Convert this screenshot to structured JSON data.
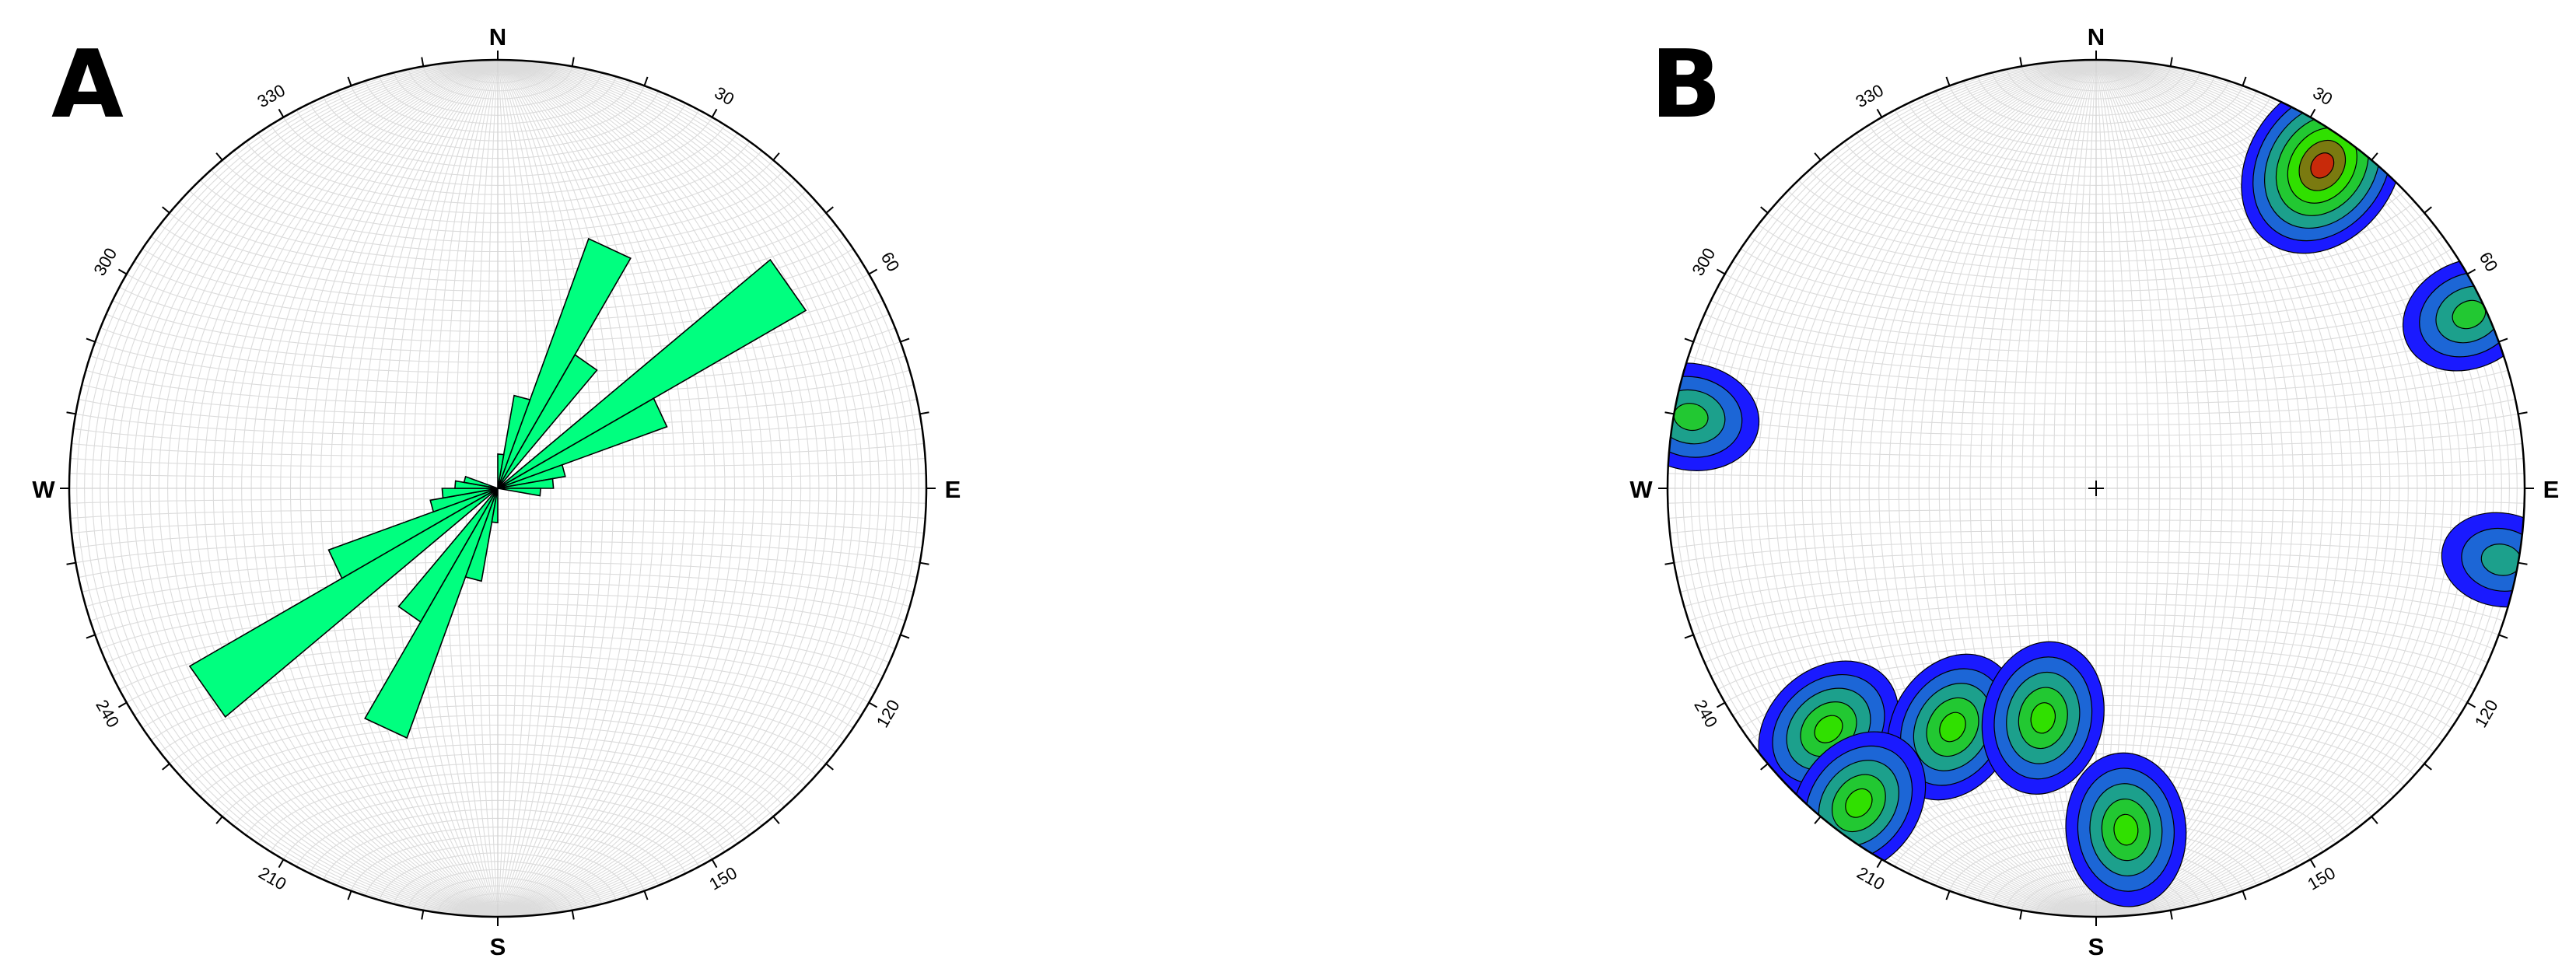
{
  "panels": [
    {
      "letter": "A",
      "cardinals": {
        "n": "N",
        "e": "E",
        "s": "S",
        "w": "W"
      },
      "degree_ticks": [
        "30",
        "60",
        "120",
        "150",
        "210",
        "240",
        "300",
        "330"
      ],
      "rose_color": "#00ff7f"
    },
    {
      "letter": "B",
      "cardinals": {
        "n": "N",
        "e": "E",
        "s": "S",
        "w": "W"
      },
      "degree_ticks": [
        "30",
        "60",
        "120",
        "150",
        "210",
        "240",
        "300",
        "330"
      ],
      "contour_colors": [
        "#1a1aff",
        "#1c66d6",
        "#1ca08c",
        "#22c832",
        "#30e000",
        "#7a7a10",
        "#c82a0a"
      ]
    }
  ],
  "chart_data": [
    {
      "type": "rose",
      "plot": "equal-area stereonet with rose diagram",
      "bin_width_deg": 10,
      "petals": [
        {
          "azimuth_center": 25,
          "length": 0.62
        },
        {
          "azimuth_center": 35,
          "length": 0.36
        },
        {
          "azimuth_center": 55,
          "length": 0.83
        },
        {
          "azimuth_center": 65,
          "length": 0.42
        },
        {
          "azimuth_center": 15,
          "length": 0.22
        },
        {
          "azimuth_center": 75,
          "length": 0.16
        },
        {
          "azimuth_center": 205,
          "length": 0.62
        },
        {
          "azimuth_center": 215,
          "length": 0.36
        },
        {
          "azimuth_center": 235,
          "length": 0.83
        },
        {
          "azimuth_center": 245,
          "length": 0.42
        },
        {
          "azimuth_center": 195,
          "length": 0.22
        },
        {
          "azimuth_center": 255,
          "length": 0.16
        },
        {
          "azimuth_center": 265,
          "length": 0.13
        },
        {
          "azimuth_center": 275,
          "length": 0.1
        },
        {
          "azimuth_center": 285,
          "length": 0.08
        },
        {
          "azimuth_center": 185,
          "length": 0.08
        },
        {
          "azimuth_center": 85,
          "length": 0.13
        },
        {
          "azimuth_center": 95,
          "length": 0.1
        },
        {
          "azimuth_center": 5,
          "length": 0.08
        }
      ]
    },
    {
      "type": "heatmap",
      "plot": "equal-area stereonet with density contours",
      "levels": 7,
      "clusters": [
        {
          "trend": 35,
          "r": 0.92,
          "peak": 7
        },
        {
          "trend": 65,
          "r": 0.96,
          "peak": 4
        },
        {
          "trend": 280,
          "r": 0.96,
          "peak": 4
        },
        {
          "trend": 100,
          "r": 0.96,
          "peak": 3
        },
        {
          "trend": 228,
          "r": 0.84,
          "peak": 5
        },
        {
          "trend": 211,
          "r": 0.65,
          "peak": 5
        },
        {
          "trend": 217,
          "r": 0.92,
          "peak": 5
        },
        {
          "trend": 193,
          "r": 0.55,
          "peak": 5
        },
        {
          "trend": 175,
          "r": 0.8,
          "peak": 5
        }
      ]
    }
  ]
}
